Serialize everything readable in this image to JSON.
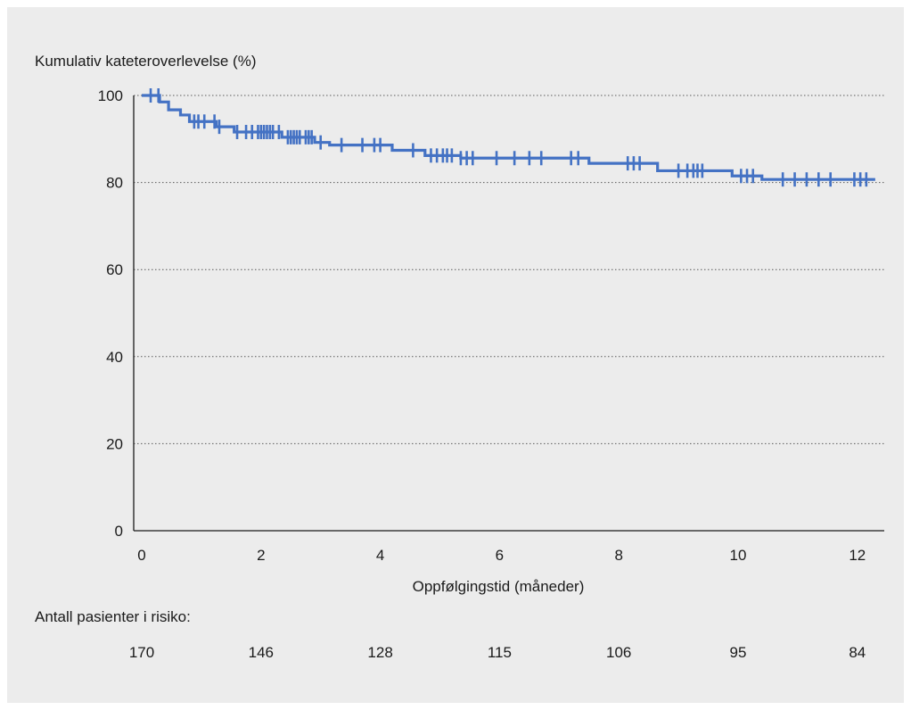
{
  "chart_data": {
    "type": "line",
    "title": "",
    "ylabel": "Kumulativ kateteroverlevelse (%)",
    "xlabel": "Oppfølgingstid (måneder)",
    "xlim": [
      0,
      12.5
    ],
    "ylim": [
      0,
      100
    ],
    "x_ticks": [
      "0",
      "2",
      "4",
      "6",
      "8",
      "10",
      "12"
    ],
    "y_ticks": [
      "0",
      "20",
      "40",
      "60",
      "80",
      "100"
    ],
    "grid": "horizontal dotted",
    "series": [
      {
        "name": "",
        "color": "#4472c4",
        "step": [
          [
            0,
            100
          ],
          [
            0.3,
            98.5
          ],
          [
            0.45,
            96.7
          ],
          [
            0.65,
            95.5
          ],
          [
            0.8,
            94.0
          ],
          [
            1.25,
            92.8
          ],
          [
            1.55,
            91.6
          ],
          [
            2.35,
            90.4
          ],
          [
            2.9,
            89.2
          ],
          [
            3.15,
            88.6
          ],
          [
            4.2,
            87.4
          ],
          [
            4.75,
            86.2
          ],
          [
            5.35,
            85.6
          ],
          [
            7.5,
            84.4
          ],
          [
            8.65,
            82.7
          ],
          [
            9.9,
            81.5
          ],
          [
            10.4,
            80.7
          ],
          [
            12.3,
            80.7
          ]
        ],
        "censor_x": [
          0.15,
          0.28,
          0.88,
          0.95,
          1.05,
          1.22,
          1.3,
          1.6,
          1.75,
          1.85,
          1.95,
          2.0,
          2.05,
          2.1,
          2.15,
          2.2,
          2.3,
          2.45,
          2.5,
          2.55,
          2.6,
          2.65,
          2.75,
          2.8,
          2.85,
          3.0,
          3.35,
          3.7,
          3.9,
          4.0,
          4.55,
          4.85,
          4.95,
          5.05,
          5.12,
          5.2,
          5.35,
          5.45,
          5.55,
          5.95,
          6.25,
          6.5,
          6.7,
          7.2,
          7.32,
          8.15,
          8.25,
          8.35,
          9.0,
          9.15,
          9.25,
          9.32,
          9.4,
          10.05,
          10.15,
          10.25,
          10.75,
          10.95,
          11.15,
          11.35,
          11.55,
          11.95,
          12.05,
          12.15
        ]
      }
    ],
    "risk_table": {
      "label": "Antall pasienter i risiko:",
      "at": [
        "0",
        "2",
        "4",
        "6",
        "8",
        "10",
        "12"
      ],
      "values": [
        "170",
        "146",
        "128",
        "115",
        "106",
        "95",
        "84"
      ]
    }
  }
}
